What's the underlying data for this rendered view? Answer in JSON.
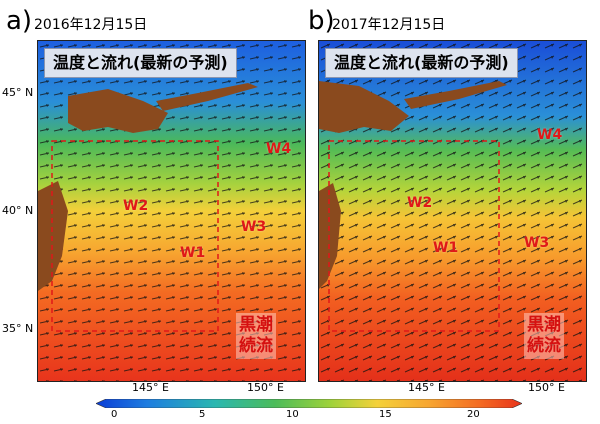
{
  "panels": [
    {
      "letter": "a)",
      "date": "2016年12月15日",
      "title": "温度と流れ(最新の予測)",
      "labels": {
        "w1": "W1",
        "w2": "W2",
        "w3": "W3",
        "w4": "W4"
      },
      "kuroshio": "黒潮\n続流"
    },
    {
      "letter": "b)",
      "date": "2017年12月15日",
      "title": "温度と流れ(最新の予測)",
      "labels": {
        "w1": "W1",
        "w2": "W2",
        "w3": "W3",
        "w4": "W4"
      },
      "kuroshio": "黒潮\n続流"
    }
  ],
  "axes": {
    "lat_ticks": [
      "45° N",
      "40° N",
      "35° N"
    ],
    "lon_ticks_a": [
      "145° E",
      "150° E"
    ],
    "lon_ticks_b": [
      "145° E",
      "150° E"
    ]
  },
  "colorbar": {
    "ticks": [
      "0",
      "5",
      "10",
      "15",
      "20"
    ],
    "colors": [
      "#0b3dd6",
      "#1e7de0",
      "#2ab7b0",
      "#4cbc5a",
      "#9ed23a",
      "#f4d13a",
      "#f7a630",
      "#f46b22",
      "#e8341c"
    ]
  }
}
